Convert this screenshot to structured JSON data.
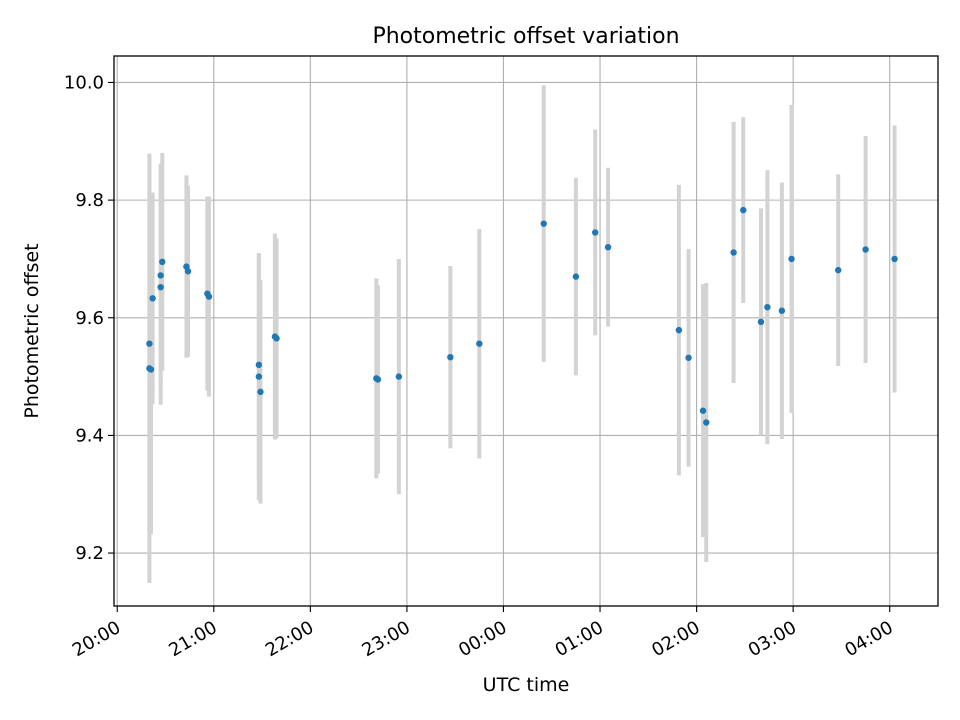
{
  "chart_data": {
    "type": "scatter",
    "title": "Photometric offset variation",
    "xlabel": "UTC time",
    "ylabel": "Photometric offset",
    "x_ticks": [
      "20:00",
      "21:00",
      "22:00",
      "23:00",
      "00:00",
      "01:00",
      "02:00",
      "03:00",
      "04:00"
    ],
    "y_ticks": [
      "9.2",
      "9.4",
      "9.6",
      "9.8",
      "10.0"
    ],
    "xlim": [
      "19:58",
      "04:30"
    ],
    "ylim": [
      9.11,
      10.045
    ],
    "grid": true,
    "colors": {
      "point": "#1f77b4",
      "errorbar": "#d3d3d3",
      "grid": "#b0b0b0"
    },
    "points": [
      {
        "t": "20:20",
        "y": 9.556,
        "err": 0.32
      },
      {
        "t": "20:20",
        "y": 9.514,
        "err": 0.365
      },
      {
        "t": "20:21",
        "y": 9.512,
        "err": 0.28
      },
      {
        "t": "20:22",
        "y": 9.633,
        "err": 0.18
      },
      {
        "t": "20:27",
        "y": 9.672,
        "err": 0.19
      },
      {
        "t": "20:27",
        "y": 9.652,
        "err": 0.2
      },
      {
        "t": "20:28",
        "y": 9.695,
        "err": 0.185
      },
      {
        "t": "20:43",
        "y": 9.687,
        "err": 0.155
      },
      {
        "t": "20:44",
        "y": 9.679,
        "err": 0.145
      },
      {
        "t": "20:56",
        "y": 9.641,
        "err": 0.165
      },
      {
        "t": "20:57",
        "y": 9.636,
        "err": 0.17
      },
      {
        "t": "21:28",
        "y": 9.52,
        "err": 0.19
      },
      {
        "t": "21:28",
        "y": 9.5,
        "err": 0.21
      },
      {
        "t": "21:29",
        "y": 9.474,
        "err": 0.19
      },
      {
        "t": "21:38",
        "y": 9.568,
        "err": 0.175
      },
      {
        "t": "21:39",
        "y": 9.565,
        "err": 0.17
      },
      {
        "t": "22:41",
        "y": 9.497,
        "err": 0.17
      },
      {
        "t": "22:42",
        "y": 9.495,
        "err": 0.16
      },
      {
        "t": "22:55",
        "y": 9.5,
        "err": 0.2
      },
      {
        "t": "23:27",
        "y": 9.533,
        "err": 0.155
      },
      {
        "t": "23:45",
        "y": 9.556,
        "err": 0.195
      },
      {
        "t": "00:25",
        "y": 9.76,
        "err": 0.235
      },
      {
        "t": "00:45",
        "y": 9.67,
        "err": 0.168
      },
      {
        "t": "00:57",
        "y": 9.745,
        "err": 0.175
      },
      {
        "t": "01:05",
        "y": 9.72,
        "err": 0.135
      },
      {
        "t": "01:49",
        "y": 9.579,
        "err": 0.247
      },
      {
        "t": "01:55",
        "y": 9.532,
        "err": 0.185
      },
      {
        "t": "02:04",
        "y": 9.442,
        "err": 0.215
      },
      {
        "t": "02:06",
        "y": 9.422,
        "err": 0.237
      },
      {
        "t": "02:23",
        "y": 9.711,
        "err": 0.222
      },
      {
        "t": "02:29",
        "y": 9.783,
        "err": 0.158
      },
      {
        "t": "02:40",
        "y": 9.593,
        "err": 0.193
      },
      {
        "t": "02:44",
        "y": 9.618,
        "err": 0.233
      },
      {
        "t": "02:53",
        "y": 9.612,
        "err": 0.218
      },
      {
        "t": "02:59",
        "y": 9.7,
        "err": 0.262
      },
      {
        "t": "03:28",
        "y": 9.681,
        "err": 0.163
      },
      {
        "t": "03:45",
        "y": 9.716,
        "err": 0.193
      },
      {
        "t": "04:03",
        "y": 9.7,
        "err": 0.227
      }
    ]
  }
}
